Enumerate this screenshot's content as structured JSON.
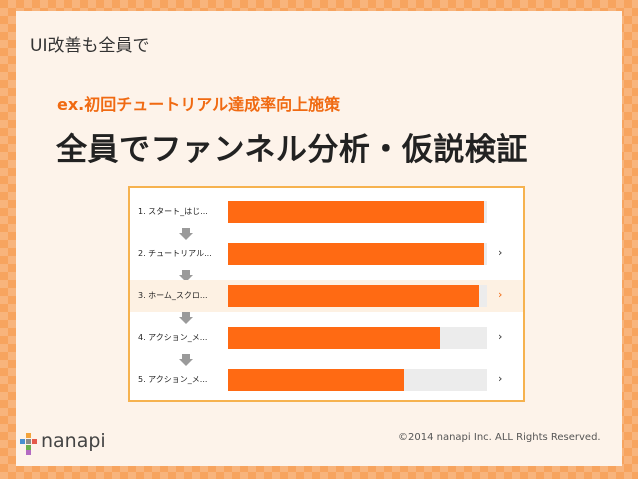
{
  "slide": {
    "corner_title": "UI改善も全員で",
    "subtitle": "ex.初回チュートリアル達成率向上施策",
    "title": "全員でファンネル分析・仮説検証"
  },
  "funnel": {
    "steps": [
      {
        "label": "1. スタート_はじ...",
        "fill": 0.99,
        "chevron": false,
        "highlight": false
      },
      {
        "label": "2. チュートリアル...",
        "fill": 0.99,
        "chevron": true,
        "highlight": false
      },
      {
        "label": "3. ホーム_スクロ...",
        "fill": 0.97,
        "chevron": true,
        "highlight": true
      },
      {
        "label": "4. アクション_メ...",
        "fill": 0.82,
        "chevron": true,
        "highlight": false
      },
      {
        "label": "5. アクション_メ...",
        "fill": 0.68,
        "chevron": true,
        "highlight": false
      }
    ],
    "chevron_glyph": "›",
    "colors": {
      "bar": "#ff6a13",
      "track": "#ececec",
      "accent": "#f06a12"
    }
  },
  "footer": {
    "logo_text": "nanapi",
    "copyright": "©2014 nanapi Inc. ALL Rights Reserved."
  }
}
